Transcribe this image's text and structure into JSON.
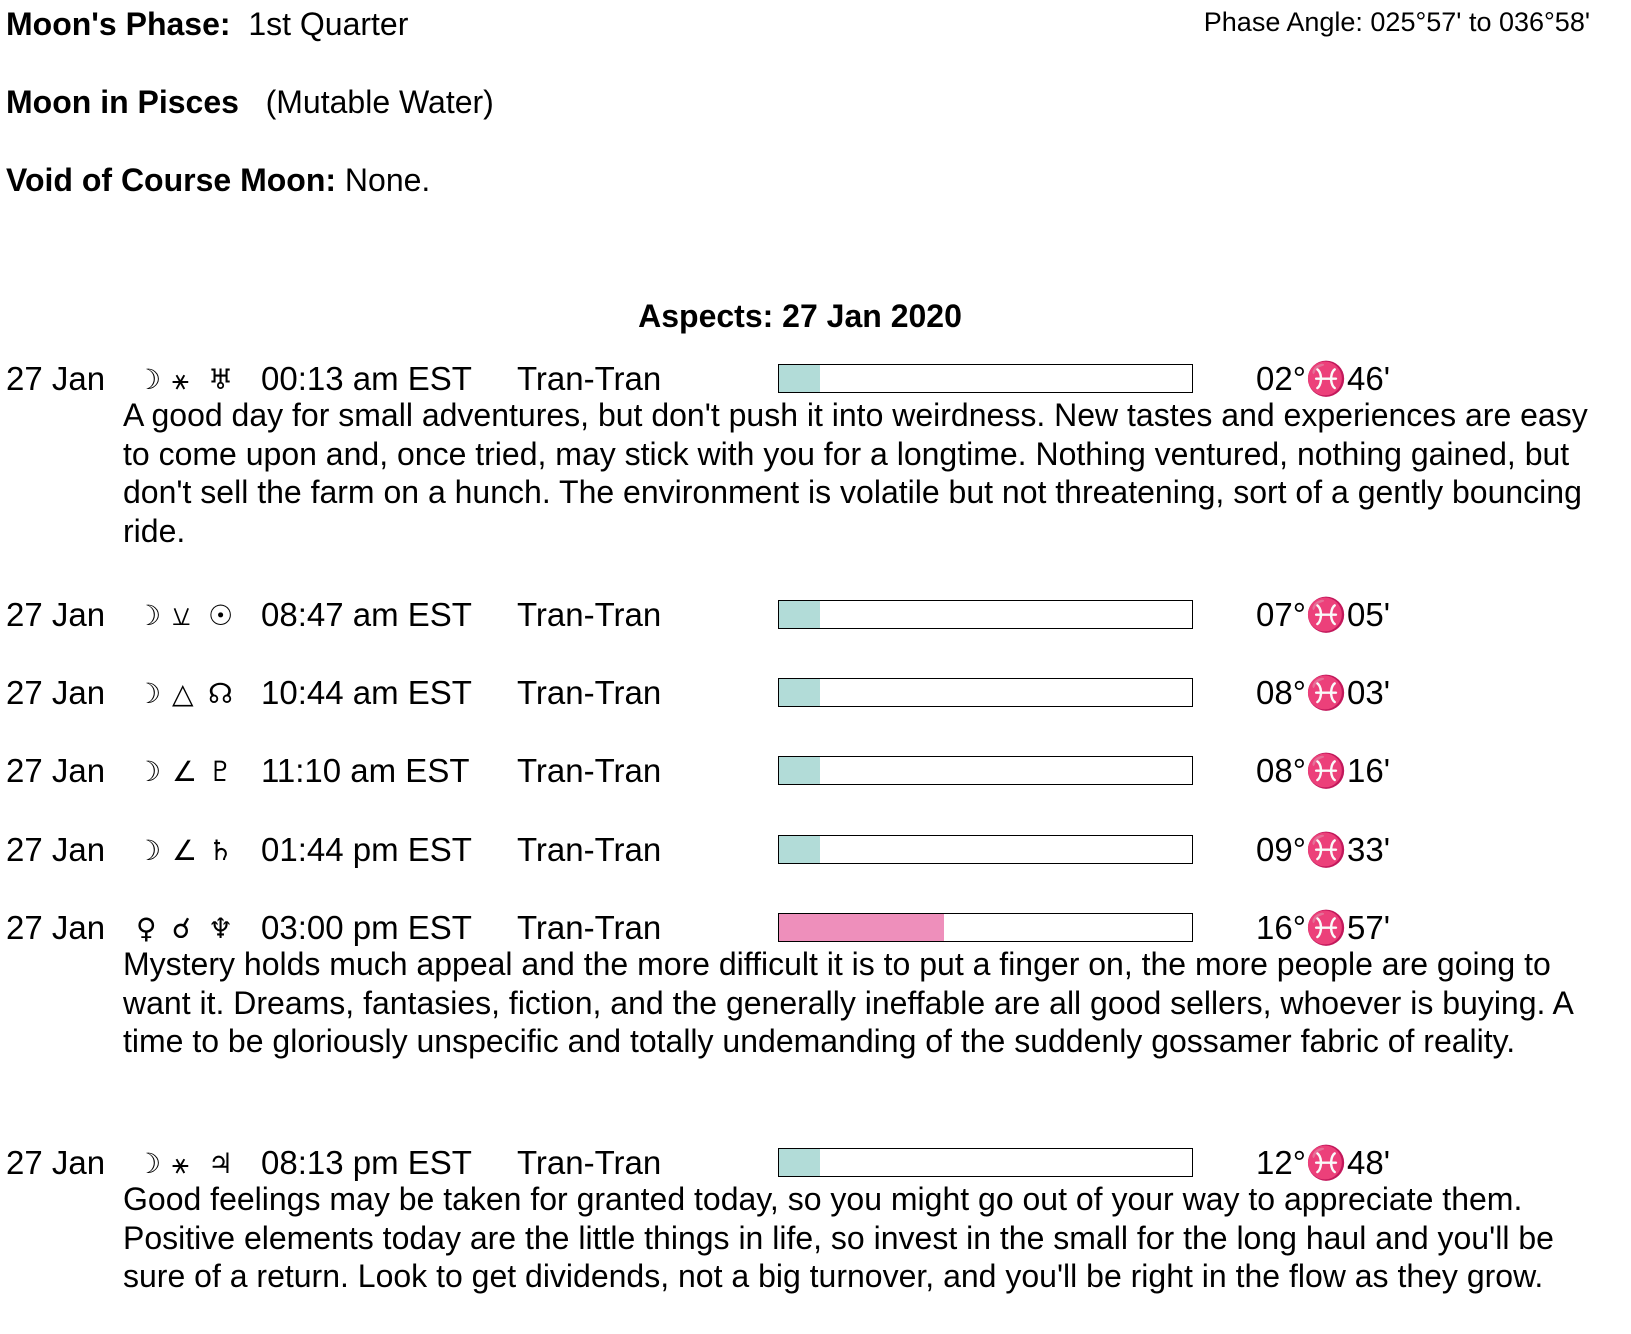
{
  "header": {
    "phase_label": "Moon's Phase:",
    "phase_value": "1st Quarter",
    "phase_angle": "Phase Angle:  025°57' to 036°58'",
    "sign_label": "Moon in Pisces",
    "sign_value": "(Mutable Water)",
    "void_label": "Void of Course Moon:",
    "void_value": "None."
  },
  "aspects_title": "Aspects: 27 Jan 2020",
  "colors": {
    "teal": "#b2dcd8",
    "pink": "#ee8fbb"
  },
  "aspects": [
    {
      "date": "27 Jan",
      "p1": "☽",
      "asp": "⚹",
      "p2": "♅",
      "time": "00:13 am EST",
      "type": "Tran-Tran",
      "strength": 0.1,
      "color": "#b2dcd8",
      "position": "02°♓46'",
      "text": "A good day for small adventures, but don't push it into weirdness. New tastes and experiences are easy to come upon and, once tried, may stick with you for a longtime. Nothing ventured, nothing gained, but don't sell the farm on a hunch. The environment is volatile but not threatening, sort of a gently bouncing ride."
    },
    {
      "date": "27 Jan",
      "p1": "☽",
      "asp": "⚺",
      "p2": "☉",
      "time": "08:47 am EST",
      "type": "Tran-Tran",
      "strength": 0.1,
      "color": "#b2dcd8",
      "position": "07°♓05'",
      "text": ""
    },
    {
      "date": "27 Jan",
      "p1": "☽",
      "asp": "△",
      "p2": "☊",
      "time": "10:44 am EST",
      "type": "Tran-Tran",
      "strength": 0.1,
      "color": "#b2dcd8",
      "position": "08°♓03'",
      "text": ""
    },
    {
      "date": "27 Jan",
      "p1": "☽",
      "asp": "∠",
      "p2": "♇",
      "time": "11:10 am EST",
      "type": "Tran-Tran",
      "strength": 0.1,
      "color": "#b2dcd8",
      "position": "08°♓16'",
      "text": ""
    },
    {
      "date": "27 Jan",
      "p1": "☽",
      "asp": "∠",
      "p2": "♄",
      "time": "01:44 pm EST",
      "type": "Tran-Tran",
      "strength": 0.1,
      "color": "#b2dcd8",
      "position": "09°♓33'",
      "text": ""
    },
    {
      "date": "27 Jan",
      "p1": "♀",
      "asp": "☌",
      "p2": "♆",
      "time": "03:00 pm EST",
      "type": "Tran-Tran",
      "strength": 0.4,
      "color": "#ee8fbb",
      "position": "16°♓57'",
      "text": "Mystery holds much appeal and the more difficult it is to put a finger on, the more people are going to want it. Dreams, fantasies, fiction, and the generally ineffable are all good sellers, whoever is buying. A time to be gloriously unspecific and totally undemanding of the suddenly gossamer fabric of reality."
    },
    {
      "date": "27 Jan",
      "p1": "☽",
      "asp": "⚹",
      "p2": "♃",
      "time": "08:13 pm EST",
      "type": "Tran-Tran",
      "strength": 0.1,
      "color": "#b2dcd8",
      "position": "12°♓48'",
      "text": "Good feelings may be taken for granted today, so you might go out of your way to appreciate them. Positive elements today are the little things in life, so invest in the small for the long haul and you'll be sure of a return. Look to get dividends, not a big turnover, and you'll be right in the flow as they grow."
    }
  ]
}
